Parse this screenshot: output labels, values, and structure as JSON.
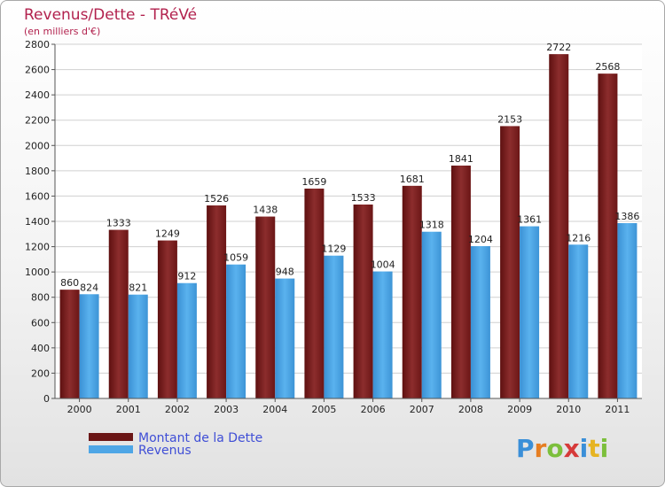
{
  "chart_data": {
    "type": "bar",
    "title": "Revenus/Dette - TRéVé",
    "subtitle": "(en milliers d'€)",
    "xlabel": "",
    "ylabel": "",
    "ylim": [
      0,
      2800
    ],
    "yticks": [
      0,
      200,
      400,
      600,
      800,
      1000,
      1200,
      1400,
      1600,
      1800,
      2000,
      2200,
      2400,
      2600,
      2800
    ],
    "categories": [
      "2000",
      "2001",
      "2002",
      "2003",
      "2004",
      "2005",
      "2006",
      "2007",
      "2008",
      "2009",
      "2010",
      "2011"
    ],
    "series": [
      {
        "name": "Montant de la Dette",
        "color": "#7a1f1f",
        "values": [
          860,
          1333,
          1249,
          1526,
          1438,
          1659,
          1533,
          1681,
          1841,
          2153,
          2722,
          2568
        ]
      },
      {
        "name": "Revenus",
        "color": "#4ea6e6",
        "values": [
          824,
          821,
          912,
          1059,
          948,
          1129,
          1004,
          1318,
          1204,
          1361,
          1216,
          1386
        ]
      }
    ],
    "grid": true,
    "legend": "bottom-left"
  },
  "logo": {
    "text": "Proxiti"
  }
}
